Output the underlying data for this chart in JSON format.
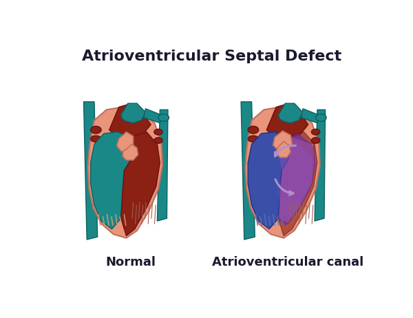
{
  "title": "Atrioventricular Septal Defect",
  "label_left": "Normal",
  "label_right": "Atrioventricular canal",
  "bg_color": "#ffffff",
  "title_color": "#1a1a2e",
  "title_fontsize": 16,
  "label_fontsize": 13,
  "skin": "#e8957a",
  "skin_light": "#f0aa90",
  "dark_red": "#8b2015",
  "med_red": "#b03020",
  "teal": "#1b8888",
  "dark_teal": "#0d6060",
  "teal_dark2": "#156868",
  "blue_fill": "#2a4090",
  "blue_mid": "#3a50a8",
  "purple_fill": "#7030a0",
  "purple_light": "#9050c0",
  "arrow_col": "#8060b0",
  "arrow_light": "#b090d0"
}
